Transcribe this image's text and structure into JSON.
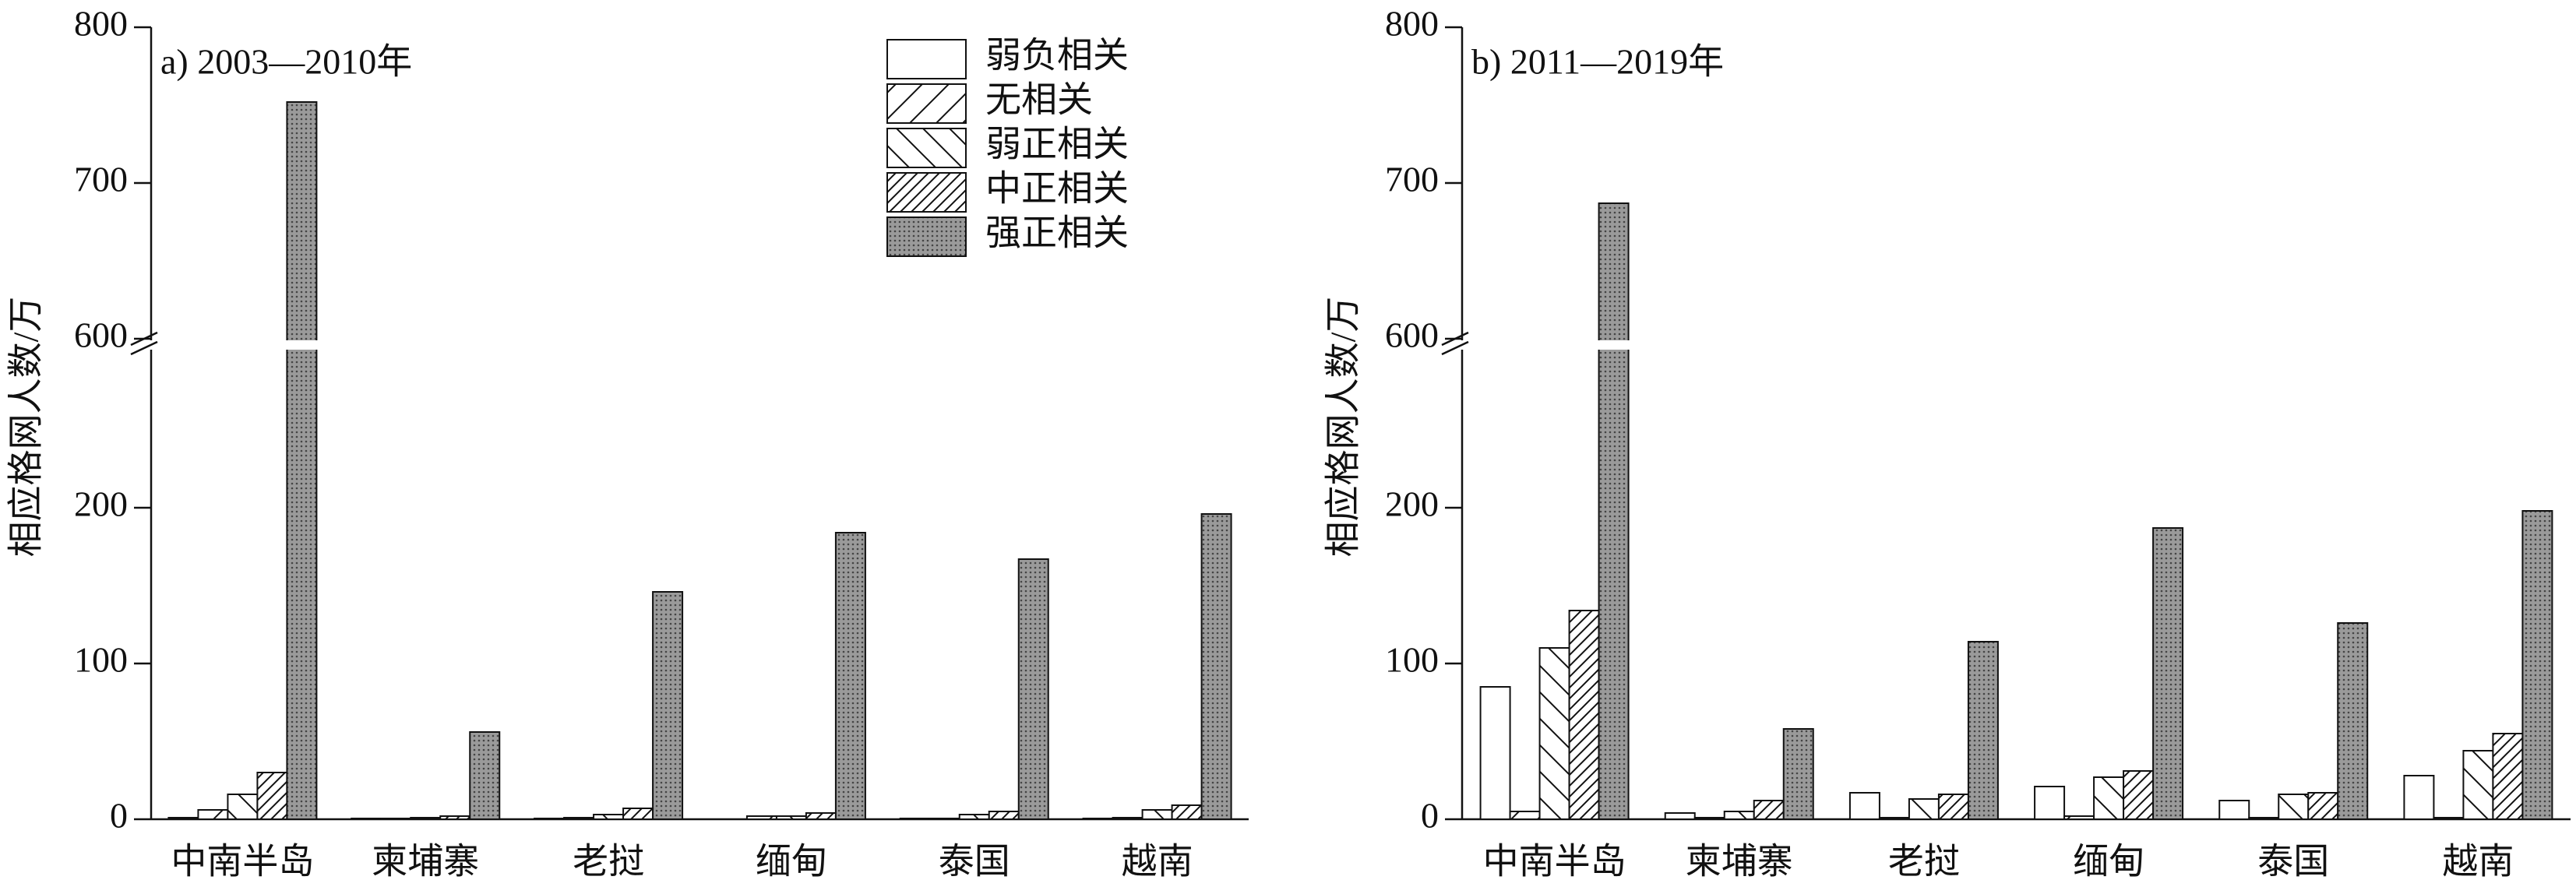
{
  "chart_data": [
    {
      "type": "bar",
      "title": "a) 2003—2010年",
      "y_label": "相应格网人数/万",
      "categories": [
        "中南半岛",
        "柬埔寨",
        "老挝",
        "缅甸",
        "泰国",
        "越南"
      ],
      "series": [
        {
          "name": "弱负相关",
          "color": "#ffffff",
          "pattern": "none",
          "values": [
            1,
            0.5,
            0.5,
            0,
            0.5,
            0.5
          ]
        },
        {
          "name": "无相关",
          "color": "#ffffff",
          "pattern": "sparse-diag",
          "values": [
            6,
            0.5,
            1,
            2,
            0.5,
            1
          ]
        },
        {
          "name": "弱正相关",
          "color": "#ffffff",
          "pattern": "back-diag",
          "values": [
            16,
            1,
            3,
            2,
            3,
            6
          ]
        },
        {
          "name": "中正相关",
          "color": "#ffffff",
          "pattern": "dense-diag",
          "values": [
            30,
            2,
            7,
            4,
            5,
            9
          ]
        },
        {
          "name": "强正相关",
          "color": "#9a9a9a",
          "pattern": "dots",
          "values": [
            752,
            56,
            146,
            184,
            167,
            196
          ]
        }
      ],
      "ylim": [
        0,
        800
      ],
      "yticks": [
        0,
        100,
        200,
        600,
        700,
        800
      ],
      "y_break": [
        200,
        600
      ],
      "legend": "upper right"
    },
    {
      "type": "bar",
      "title": "b) 2011—2019年",
      "y_label": "相应格网人数/万",
      "categories": [
        "中南半岛",
        "柬埔寨",
        "老挝",
        "缅甸",
        "泰国",
        "越南"
      ],
      "series": [
        {
          "color": "#ffffff",
          "pattern": "none",
          "values": [
            85,
            4,
            17,
            21,
            12,
            28
          ]
        },
        {
          "color": "#ffffff",
          "pattern": "sparse-diag",
          "values": [
            5,
            1,
            1,
            2,
            1,
            1
          ]
        },
        {
          "color": "#ffffff",
          "pattern": "back-diag",
          "values": [
            110,
            5,
            13,
            27,
            16,
            44
          ]
        },
        {
          "color": "#ffffff",
          "pattern": "dense-diag",
          "values": [
            134,
            12,
            16,
            31,
            17,
            55
          ]
        },
        {
          "color": "#9a9a9a",
          "pattern": "dots",
          "values": [
            687,
            58,
            114,
            187,
            126,
            198
          ]
        }
      ],
      "ylim": [
        0,
        800
      ],
      "yticks": [
        0,
        100,
        200,
        600,
        700,
        800
      ],
      "y_break": [
        200,
        600
      ]
    }
  ]
}
